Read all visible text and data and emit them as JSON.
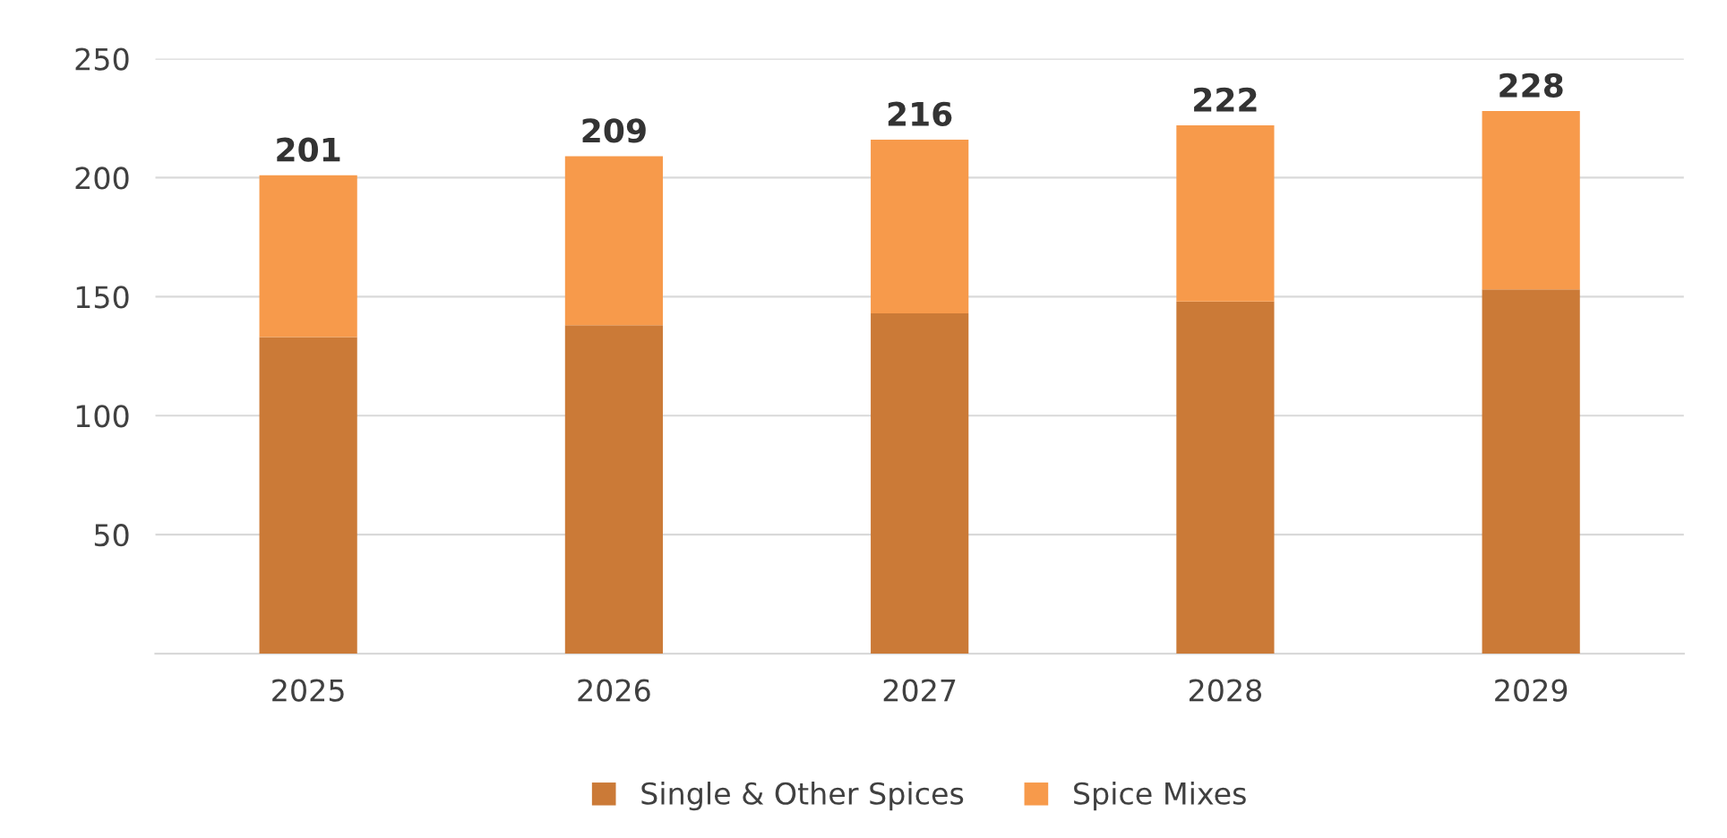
{
  "chart_data": {
    "type": "bar",
    "stacked": true,
    "categories": [
      "2025",
      "2026",
      "2027",
      "2028",
      "2029"
    ],
    "series": [
      {
        "name": "Single & Other Spices",
        "color": "#cb7a37",
        "values": [
          133,
          138,
          143,
          148,
          153
        ]
      },
      {
        "name": "Spice Mixes",
        "color": "#f79a4b",
        "values": [
          68,
          71,
          73,
          74,
          75
        ]
      }
    ],
    "totals": [
      "201",
      "209",
      "216",
      "222",
      "228"
    ],
    "ylim": [
      0,
      250
    ],
    "yticks": [
      50,
      100,
      150,
      200,
      250
    ],
    "grid": "y",
    "legend": "bottom"
  }
}
